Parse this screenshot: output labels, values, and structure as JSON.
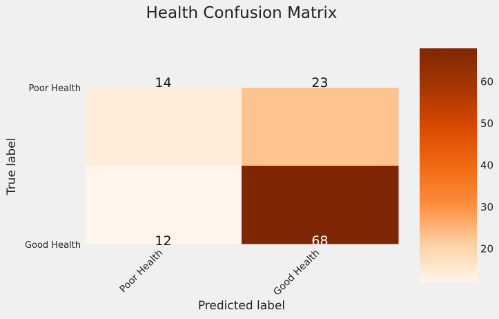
{
  "chart_data": {
    "type": "heatmap",
    "title": "Health Confusion Matrix",
    "xlabel": "Predicted label",
    "ylabel": "True label",
    "x_categories": [
      "Poor Health",
      "Good Health"
    ],
    "y_categories": [
      "Poor Health",
      "Good Health"
    ],
    "values": [
      [
        14,
        23
      ],
      [
        12,
        68
      ]
    ],
    "colormap": "OrRd-like (light cream to dark red)",
    "color_stops": [
      "#fff5eb",
      "#fdd0a2",
      "#fd8d3c",
      "#f16913",
      "#d94801",
      "#a63603",
      "#7f2704"
    ],
    "colorbar": {
      "range": [
        12,
        68
      ],
      "ticks": [
        20,
        30,
        40,
        50,
        60
      ],
      "tick_labels": [
        "20",
        "30",
        "40",
        "50",
        "60"
      ]
    },
    "grid": false,
    "legend": "colorbar-right"
  }
}
